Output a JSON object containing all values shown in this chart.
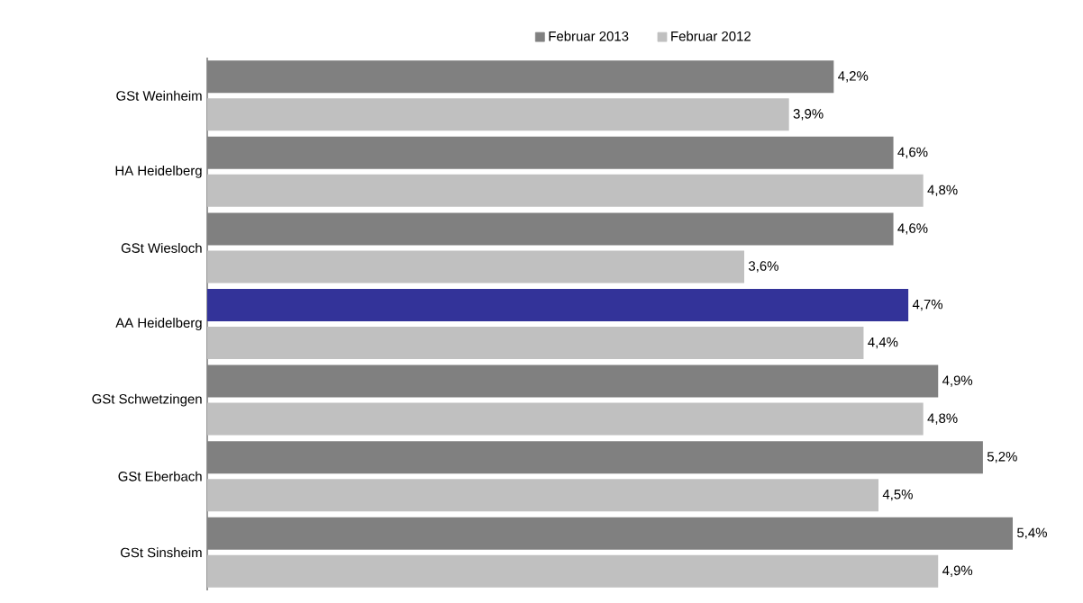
{
  "chart_data": {
    "type": "bar",
    "orientation": "horizontal",
    "categories": [
      "GSt Weinheim",
      "HA Heidelberg",
      "GSt Wiesloch",
      "AA Heidelberg",
      "GSt Schwetzingen",
      "GSt Eberbach",
      "GSt Sinsheim"
    ],
    "series": [
      {
        "name": "Februar 2013",
        "color": "#808080",
        "colors": [
          "#808080",
          "#808080",
          "#808080",
          "#333399",
          "#808080",
          "#808080",
          "#808080"
        ],
        "values": [
          4.2,
          4.6,
          4.6,
          4.7,
          4.9,
          5.2,
          5.4
        ],
        "value_labels": [
          "4,2%",
          "4,6%",
          "4,6%",
          "4,7%",
          "4,9%",
          "5,2%",
          "5,4%"
        ]
      },
      {
        "name": "Februar 2012",
        "color": "#c0c0c0",
        "values": [
          3.9,
          4.8,
          3.6,
          4.4,
          4.8,
          4.5,
          4.9
        ],
        "value_labels": [
          "3,9%",
          "4,8%",
          "3,6%",
          "4,4%",
          "4,8%",
          "4,5%",
          "4,9%"
        ]
      }
    ],
    "tick_labels": "y",
    "legend": "top"
  }
}
